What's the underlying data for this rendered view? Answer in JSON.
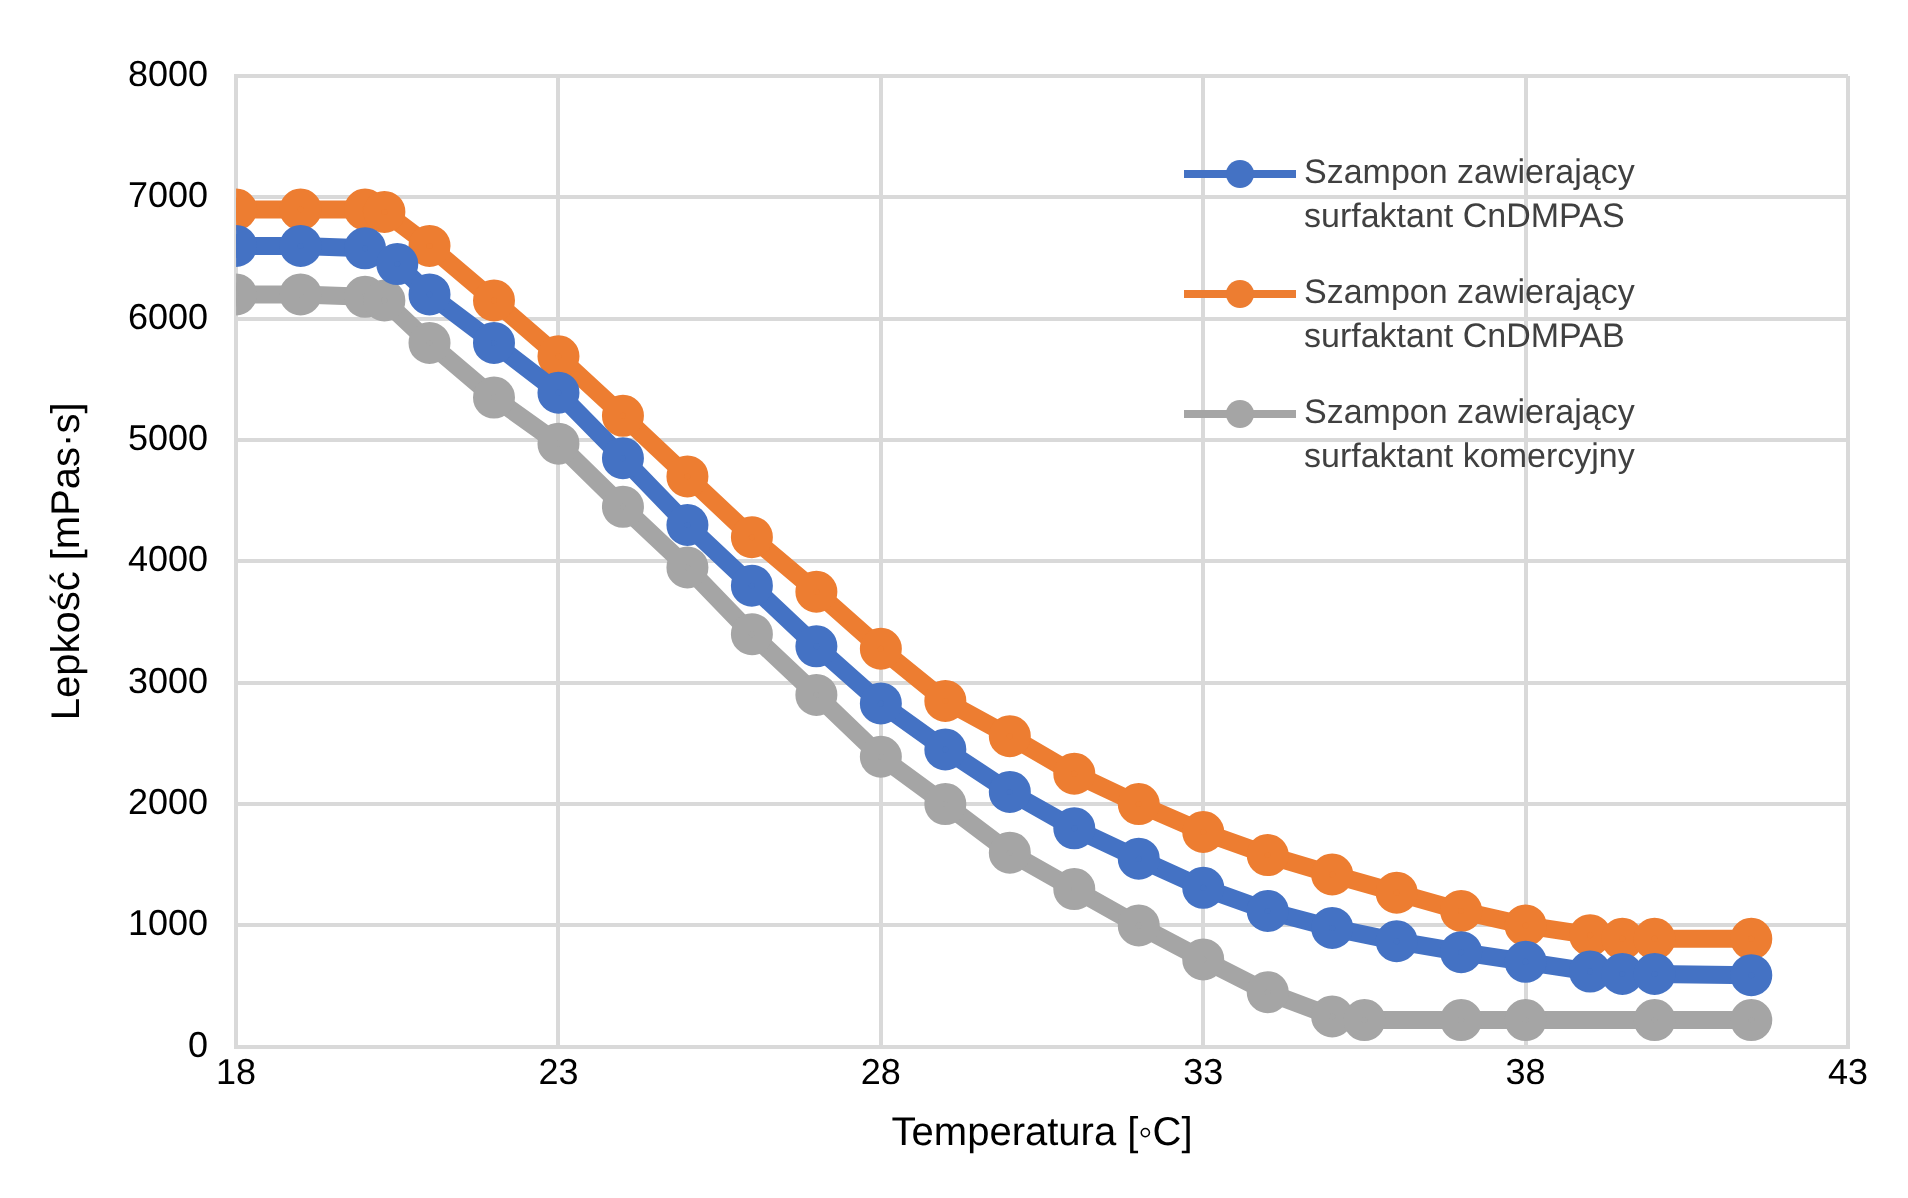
{
  "chart_data": {
    "type": "line",
    "xlabel": "Temperatura [◦C]",
    "ylabel": "Lepkość [mPas·s]",
    "xlim": [
      18,
      43
    ],
    "xticks": [
      18,
      23,
      28,
      33,
      38,
      43
    ],
    "ylim": [
      0,
      8000
    ],
    "yticks": [
      0,
      1000,
      2000,
      3000,
      4000,
      5000,
      6000,
      7000,
      8000
    ],
    "grid": true,
    "legend": "top right",
    "marker": "circle",
    "line_style": "solid",
    "series": [
      {
        "name": "Szampon zawierający surfaktant CnDMPAS",
        "color": "#4472c4",
        "x": [
          18,
          19,
          20,
          20.5,
          21,
          22,
          23,
          24,
          25,
          26,
          27,
          28,
          29,
          30,
          31,
          32,
          33,
          34,
          35,
          36,
          37,
          38,
          39,
          39.5,
          40,
          41.5
        ],
        "values": [
          6600,
          6600,
          6580,
          6450,
          6200,
          5800,
          5390,
          4850,
          4300,
          3800,
          3300,
          2830,
          2450,
          2100,
          1800,
          1550,
          1310,
          1120,
          980,
          870,
          780,
          700,
          620,
          600,
          600,
          590
        ]
      },
      {
        "name": "Szampon zawierający surfaktant CnDMPAB",
        "color": "#ed7d31",
        "x": [
          18,
          19,
          20,
          20.3,
          21,
          22,
          23,
          24,
          25,
          26,
          27,
          28,
          29,
          30,
          31,
          32,
          33,
          34,
          35,
          36,
          37,
          38,
          39,
          39.5,
          40,
          41.5
        ],
        "values": [
          6900,
          6900,
          6900,
          6880,
          6600,
          6150,
          5690,
          5200,
          4700,
          4200,
          3750,
          3280,
          2850,
          2560,
          2250,
          2000,
          1770,
          1580,
          1420,
          1270,
          1120,
          1000,
          920,
          890,
          890,
          890
        ]
      },
      {
        "name": "Szampon zawierający surfaktant komercyjny",
        "color": "#a5a5a5",
        "x": [
          18,
          19,
          20,
          20.3,
          21,
          22,
          23,
          24,
          25,
          26,
          27,
          28,
          29,
          30,
          31,
          32,
          33,
          34,
          35,
          35.5,
          37,
          38,
          40,
          41.5
        ],
        "values": [
          6200,
          6200,
          6180,
          6150,
          5800,
          5350,
          4970,
          4450,
          3950,
          3400,
          2900,
          2390,
          2000,
          1600,
          1300,
          1000,
          720,
          450,
          250,
          220,
          220,
          220,
          220,
          220
        ]
      }
    ]
  }
}
